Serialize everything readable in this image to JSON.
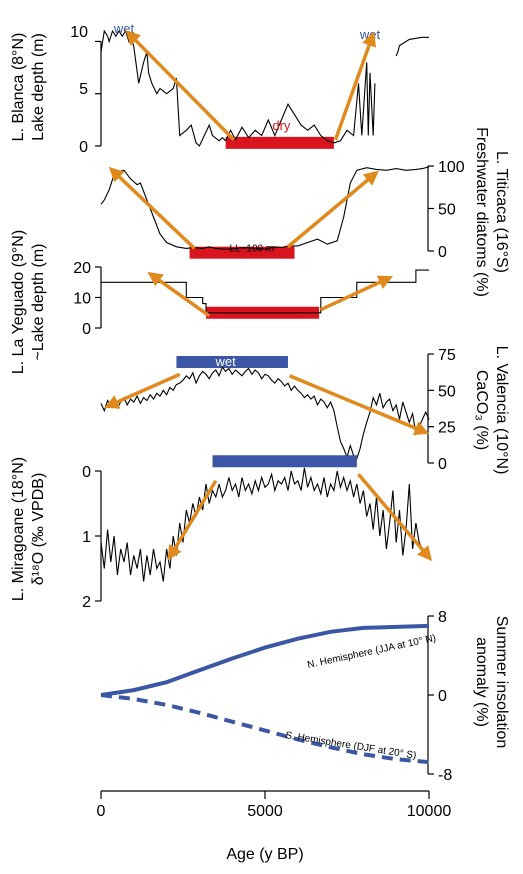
{
  "chart_data": [
    {
      "id": "blanca",
      "type": "line",
      "ylabel_lines": [
        "L. Blanca (8°N)",
        "Lake depth (m)"
      ],
      "yticks": [
        0,
        5,
        10
      ],
      "ylim": [
        0,
        11
      ],
      "y_side": "left",
      "annotations": [
        {
          "text": "wet",
          "color": "#3a56a5",
          "x": 700,
          "y": 11.2
        },
        {
          "text": "wet",
          "color": "#3a56a5",
          "x": 8200,
          "y": 10.6
        },
        {
          "text": "dry",
          "color": "#d9141e",
          "x": 5500,
          "y": 1.9
        }
      ],
      "bars": [
        {
          "x0": 3800,
          "x1": 7100,
          "y": 0.3,
          "color": "#d9141e"
        }
      ],
      "arrows": [
        {
          "from": [
            4050,
            0.6
          ],
          "to": [
            900,
            10.6
          ]
        },
        {
          "from": [
            7150,
            0.6
          ],
          "to": [
            8250,
            10.3
          ]
        }
      ],
      "series": [
        {
          "x": [
            0,
            100,
            200,
            250,
            350,
            450,
            550,
            650,
            750,
            850,
            900,
            1000,
            1150,
            1300,
            1400,
            1450,
            1550,
            1700,
            1800,
            2000,
            2200,
            2300,
            2400,
            2600,
            2750,
            2900,
            3000,
            3150,
            3300,
            3400,
            3600,
            3700,
            3800
          ],
          "y": [
            9,
            11,
            10.5,
            10,
            11,
            10.5,
            11,
            10.5,
            11,
            10,
            10.6,
            9.5,
            6,
            8,
            9,
            7,
            6,
            5,
            5.5,
            5,
            5.5,
            6.5,
            1,
            1.5,
            2,
            0.3,
            0,
            1,
            2,
            1,
            0.5,
            0.8,
            0.5
          ]
        },
        {
          "x": [
            3800,
            3950,
            4100,
            4300,
            4500,
            4700,
            4900,
            5100,
            5300,
            5500,
            5700,
            5900,
            6100,
            6300,
            6500,
            6700,
            6900,
            7100,
            7300,
            7500,
            7700,
            7850,
            7950,
            8100,
            8150,
            8200,
            8300,
            8350
          ],
          "y": [
            0.5,
            1.5,
            0.6,
            1.8,
            0.8,
            1.5,
            1,
            2.5,
            1,
            2.5,
            4,
            3,
            2,
            1.5,
            2,
            1,
            0.5,
            0.3,
            0.5,
            1.5,
            1,
            6,
            1,
            8,
            1,
            7,
            1,
            6
          ]
        },
        {
          "x": [
            9000,
            9050,
            9100,
            9400,
            9800,
            10000
          ],
          "y": [
            8.6,
            9.0,
            9.6,
            10.2,
            10.4,
            10.4
          ]
        }
      ]
    },
    {
      "id": "titicaca",
      "type": "line",
      "ylabel_lines": [
        "L. Titicaca (16°S)",
        "Freshwater diatoms (%)"
      ],
      "yticks": [
        0,
        50,
        100
      ],
      "ylim": [
        0,
        100
      ],
      "y_side": "right",
      "annotations": [
        {
          "text": "LL -100 m",
          "color": "#000000",
          "x": 4600,
          "y": 4
        }
      ],
      "bars": [
        {
          "x0": 2700,
          "x1": 5900,
          "y": -2,
          "color": "#d9141e"
        }
      ],
      "arrows": [
        {
          "from": [
            2850,
            3
          ],
          "to": [
            400,
            93
          ]
        },
        {
          "from": [
            5700,
            5
          ],
          "to": [
            8300,
            89
          ]
        }
      ],
      "series": [
        {
          "x": [
            0,
            100,
            250,
            400,
            550,
            700,
            900,
            1100,
            1200,
            1400,
            1600,
            1800,
            2000,
            2300,
            2600,
            2800,
            3100,
            3300,
            3500,
            3800,
            4100,
            4400,
            4700,
            5000,
            5300,
            5500,
            5700,
            6000,
            6300,
            6600,
            6900,
            7200,
            7400,
            7600,
            7800,
            8100,
            8400,
            8700,
            9000,
            9300,
            9600,
            9800,
            10000
          ],
          "y": [
            55,
            60,
            72,
            90,
            93,
            95,
            85,
            78,
            80,
            60,
            40,
            20,
            10,
            5,
            3,
            4,
            3,
            5,
            3,
            2,
            3,
            4,
            3,
            2,
            5,
            4,
            6,
            6,
            10,
            14,
            8,
            12,
            40,
            80,
            95,
            98,
            96,
            95,
            97,
            95,
            96,
            97,
            99
          ]
        }
      ]
    },
    {
      "id": "yeguado",
      "type": "line",
      "ylabel_lines": [
        "L. La Yeguado (9°N)",
        "~Lake depth (m)"
      ],
      "yticks": [
        0,
        10,
        20
      ],
      "ylim": [
        0,
        20
      ],
      "y_side": "left",
      "annotations": [],
      "bars": [
        {
          "x0": 3200,
          "x1": 6650,
          "y": 5,
          "color": "#d9141e"
        }
      ],
      "arrows": [
        {
          "from": [
            3300,
            4
          ],
          "to": [
            1600,
            17
          ]
        },
        {
          "from": [
            6700,
            6
          ],
          "to": [
            8700,
            16
          ]
        }
      ],
      "series": [
        {
          "x": [
            0,
            2600,
            2600,
            2600,
            2600,
            2600,
            3100,
            3100,
            3200,
            3200,
            6700,
            6700,
            7100,
            7100,
            7800,
            7800,
            8300,
            8300,
            9600,
            9600,
            10000
          ],
          "y": [
            15,
            15,
            15,
            15,
            15,
            10,
            10,
            8,
            8,
            5,
            5,
            10,
            10,
            10,
            10,
            15,
            15,
            15,
            15,
            19,
            19
          ]
        }
      ]
    },
    {
      "id": "valencia",
      "type": "line",
      "ylabel_lines": [
        "L. Valencia (10°N)",
        "CaCO₃ (%)"
      ],
      "yticks": [
        0,
        25,
        50,
        75
      ],
      "ylim": [
        0,
        75
      ],
      "y_side": "right",
      "annotations": [
        {
          "text": "wet",
          "color": "#ffffff",
          "x": 3800,
          "y": 69.5
        }
      ],
      "bars": [
        {
          "x0": 2300,
          "x1": 5700,
          "y": 69.5,
          "color": "#3a56a5"
        }
      ],
      "arrows": [
        {
          "from": [
            2400,
            61
          ],
          "to": [
            300,
            40
          ]
        },
        {
          "from": [
            5750,
            60
          ],
          "to": [
            9800,
            22
          ]
        }
      ],
      "series": [
        {
          "x": [
            0,
            100,
            200,
            300,
            400,
            500,
            600,
            700,
            800,
            900,
            1000,
            1100,
            1200,
            1300,
            1400,
            1500,
            1600,
            1700,
            1800,
            1900,
            2000,
            2100,
            2200,
            2300,
            2400,
            2500,
            2600,
            2700,
            2800,
            2900,
            3000,
            3100,
            3200,
            3300,
            3400,
            3500,
            3600,
            3700,
            3800,
            3900,
            4000,
            4100,
            4200,
            4300,
            4400,
            4500,
            4600,
            4700,
            4800,
            4900,
            5000,
            5100,
            5200,
            5300,
            5400,
            5500,
            5600,
            5700,
            5800,
            5900,
            6000,
            6100,
            6200,
            6300,
            6400,
            6500,
            6600,
            6700,
            6800,
            6900,
            7000,
            7100,
            7200,
            7300,
            7400,
            7500,
            7600,
            7700,
            7800,
            7900,
            8000,
            8100,
            8200,
            8300,
            8400,
            8500,
            8600,
            8700,
            8800,
            8900,
            9000,
            9100,
            9200,
            9300,
            9400,
            9500,
            9600,
            9700,
            9800,
            9900,
            10000
          ],
          "y": [
            41,
            36,
            43,
            40,
            44,
            38,
            42,
            45,
            40,
            44,
            42,
            46,
            41,
            45,
            43,
            47,
            44,
            48,
            46,
            50,
            47,
            52,
            50,
            54,
            55,
            57,
            60,
            58,
            62,
            55,
            60,
            63,
            61,
            58,
            62,
            64,
            60,
            66,
            63,
            65,
            61,
            64,
            62,
            60,
            63,
            65,
            61,
            64,
            62,
            58,
            61,
            60,
            57,
            55,
            58,
            56,
            53,
            55,
            50,
            53,
            50,
            48,
            45,
            47,
            44,
            46,
            40,
            44,
            42,
            38,
            42,
            36,
            25,
            15,
            10,
            4,
            12,
            5,
            3,
            10,
            20,
            28,
            35,
            45,
            40,
            48,
            38,
            42,
            44,
            36,
            40,
            30,
            42,
            35,
            28,
            34,
            20,
            25,
            30,
            35,
            30
          ]
        }
      ]
    },
    {
      "id": "miragoane",
      "type": "line",
      "ylabel_lines": [
        "L. Miragoane (18°N)",
        "δ¹⁸O (‰ VPDB)"
      ],
      "yticks": [
        0,
        1,
        2
      ],
      "ylim": [
        2,
        -0.2
      ],
      "y_side": "left",
      "annotations": [],
      "bars": [
        {
          "x0": 3400,
          "x1": 7800,
          "y": -0.15,
          "color": "#3a56a5"
        }
      ],
      "arrows": [
        {
          "from": [
            3500,
            0.15
          ],
          "to": [
            2150,
            1.28
          ]
        },
        {
          "from": [
            7850,
            0.05
          ],
          "to": [
            9950,
            1.3
          ]
        }
      ],
      "series": [
        {
          "x": [
            0,
            100,
            200,
            300,
            400,
            500,
            600,
            700,
            800,
            900,
            1000,
            1100,
            1200,
            1300,
            1400,
            1500,
            1600,
            1700,
            1800,
            1900,
            2000,
            2100,
            2200,
            2300,
            2400,
            2500,
            2600,
            2700,
            2800,
            2900,
            3000,
            3100,
            3200,
            3300,
            3400,
            3500,
            3600,
            3700,
            3800,
            3900,
            4000,
            4100,
            4200,
            4300,
            4400,
            4500,
            4600,
            4700,
            4800,
            4900,
            5000,
            5100,
            5200,
            5300,
            5400,
            5500,
            5600,
            5700,
            5800,
            5900,
            6000,
            6100,
            6200,
            6300,
            6400,
            6500,
            6600,
            6700,
            6800,
            6900,
            7000,
            7100,
            7200,
            7300,
            7400,
            7500,
            7600,
            7700,
            7800,
            7900,
            8000,
            8100,
            8200,
            8300,
            8400,
            8500,
            8600,
            8700,
            8800,
            8900,
            9000,
            9100,
            9200,
            9300,
            9400,
            9500,
            9600,
            9700,
            9800,
            9900,
            10000
          ],
          "y": [
            1.1,
            1.5,
            0.9,
            1.4,
            1.0,
            1.6,
            1.2,
            1.4,
            1.1,
            1.6,
            1.3,
            1.5,
            1.2,
            1.7,
            1.3,
            1.6,
            1.2,
            1.5,
            1.4,
            1.7,
            1.2,
            1.5,
            1.0,
            1.3,
            0.8,
            1.1,
            0.6,
            0.8,
            0.5,
            0.7,
            0.4,
            0.6,
            0.2,
            0.5,
            0.3,
            0.4,
            0.2,
            0.4,
            0.3,
            0.1,
            0.3,
            0.2,
            0.4,
            0.1,
            0.3,
            0.2,
            0.35,
            0.15,
            0.3,
            0.1,
            0.25,
            0.2,
            0.05,
            0.3,
            0.15,
            0.2,
            0.1,
            0.3,
            0.0,
            0.2,
            0.15,
            0.3,
            -0.05,
            0.25,
            0.1,
            0.3,
            0.2,
            0.35,
            0.1,
            0.4,
            0.2,
            0.3,
            0.0,
            0.25,
            0.1,
            0.3,
            0.15,
            0.4,
            0.2,
            0.5,
            0.3,
            0.7,
            0.5,
            0.9,
            0.4,
            1.0,
            0.6,
            1.2,
            0.8,
            0.3,
            1.1,
            0.6,
            1.3,
            0.9,
            0.2,
            1.2,
            0.8,
            1.1,
            1.2,
            1.3,
            1.3
          ]
        }
      ]
    },
    {
      "id": "insolation",
      "type": "line",
      "ylabel_lines": [
        "Summer insolation",
        "anomaly (%)"
      ],
      "yticks": [
        -8,
        0,
        8
      ],
      "ylim": [
        -8,
        8
      ],
      "y_side": "right",
      "xlabel": "Age (y BP)",
      "xticks": [
        0,
        5000,
        10000
      ],
      "xlim": [
        0,
        10000
      ],
      "annotations": [],
      "bars": [],
      "arrows": [],
      "series": [
        {
          "name": "N. Hemisphere (JJA at 10° N)",
          "style": "solid",
          "color": "#3a56a5",
          "x": [
            0,
            1000,
            2000,
            3000,
            4000,
            5000,
            6000,
            7000,
            8000,
            9000,
            10000
          ],
          "y": [
            0,
            0.5,
            1.3,
            2.5,
            3.7,
            4.8,
            5.7,
            6.4,
            6.8,
            6.9,
            7.0
          ]
        },
        {
          "name": "S. Hemisphere (DJF at 20° S)",
          "style": "dashed",
          "color": "#3a56a5",
          "x": [
            0,
            1000,
            2000,
            3000,
            4000,
            5000,
            6000,
            7000,
            8000,
            9000,
            10000
          ],
          "y": [
            0,
            -0.4,
            -1.0,
            -1.8,
            -2.7,
            -3.6,
            -4.5,
            -5.3,
            -6.0,
            -6.5,
            -6.8
          ]
        }
      ]
    }
  ]
}
